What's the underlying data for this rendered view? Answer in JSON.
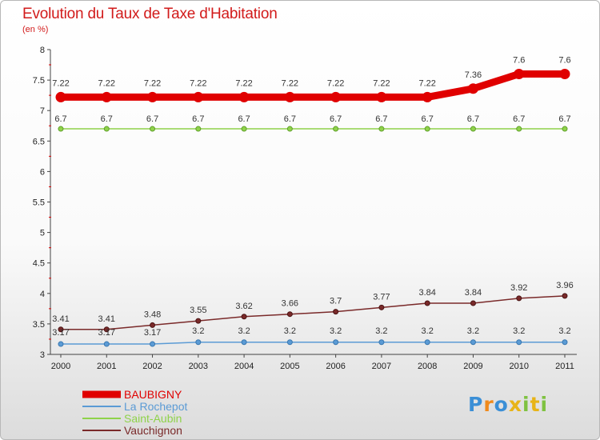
{
  "chart_data": {
    "type": "line",
    "title": "Evolution du Taux de Taxe d'Habitation",
    "subtitle": "(en %)",
    "categories": [
      "2000",
      "2001",
      "2002",
      "2003",
      "2004",
      "2005",
      "2006",
      "2007",
      "2008",
      "2009",
      "2010",
      "2011"
    ],
    "ylim": [
      3,
      8
    ],
    "yticks": [
      "3",
      "3.5",
      "4",
      "4.5",
      "5",
      "5.5",
      "6",
      "6.5",
      "7",
      "7.5",
      "8"
    ],
    "grid": false,
    "legend": "bottom-left",
    "series": [
      {
        "name": "BAUBIGNY",
        "color": "#e00000",
        "values": [
          7.22,
          7.22,
          7.22,
          7.22,
          7.22,
          7.22,
          7.22,
          7.22,
          7.22,
          7.36,
          7.6,
          7.6
        ],
        "labels": [
          "7.22",
          "7.22",
          "7.22",
          "7.22",
          "7.22",
          "7.22",
          "7.22",
          "7.22",
          "7.22",
          "7.36",
          "7.6",
          "7.6"
        ]
      },
      {
        "name": "La Rochepot",
        "color": "#5b9bd5",
        "values": [
          3.17,
          3.17,
          3.17,
          3.2,
          3.2,
          3.2,
          3.2,
          3.2,
          3.2,
          3.2,
          3.2,
          3.2
        ],
        "labels": [
          "3.17",
          "3.17",
          "3.17",
          "3.2",
          "3.2",
          "3.2",
          "3.2",
          "3.2",
          "3.2",
          "3.2",
          "3.2",
          "3.2"
        ]
      },
      {
        "name": "Saint-Aubin",
        "color": "#8fd24a",
        "values": [
          6.7,
          6.7,
          6.7,
          6.7,
          6.7,
          6.7,
          6.7,
          6.7,
          6.7,
          6.7,
          6.7,
          6.7
        ],
        "labels": [
          "6.7",
          "6.7",
          "6.7",
          "6.7",
          "6.7",
          "6.7",
          "6.7",
          "6.7",
          "6.7",
          "6.7",
          "6.7",
          "6.7"
        ]
      },
      {
        "name": "Vauchignon",
        "color": "#7a2a2a",
        "values": [
          3.41,
          3.41,
          3.48,
          3.55,
          3.62,
          3.66,
          3.7,
          3.77,
          3.84,
          3.84,
          3.92,
          3.96
        ],
        "labels": [
          "3.41",
          "3.41",
          "3.48",
          "3.55",
          "3.62",
          "3.66",
          "3.7",
          "3.77",
          "3.84",
          "3.84",
          "3.92",
          "3.96"
        ]
      }
    ]
  },
  "logo": {
    "letters": [
      "P",
      "r",
      "o",
      "x",
      "i",
      "t",
      "i"
    ],
    "colors": [
      "#3b8fd6",
      "#f08a1c",
      "#3b8fd6",
      "#e8b417",
      "#7fc241",
      "#e8b417",
      "#7fc241"
    ]
  }
}
